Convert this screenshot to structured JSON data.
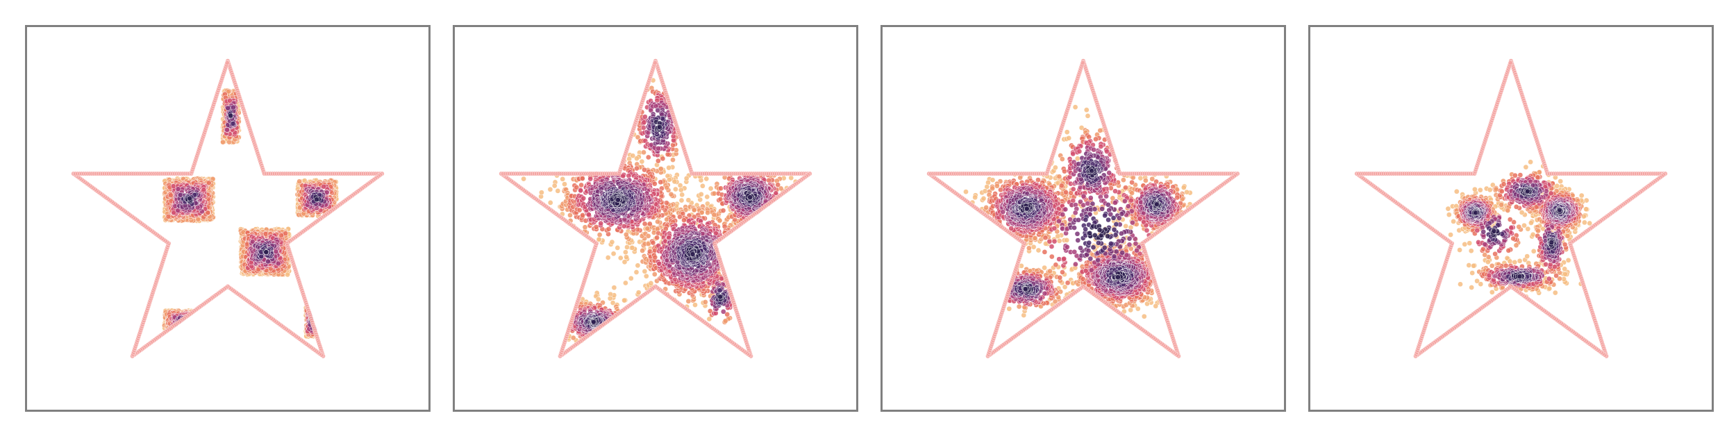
{
  "figure": {
    "columns": 4
  },
  "colors": {
    "outline": "#f4a3a0",
    "frame": "#808080",
    "background": "#ffffff",
    "palette": [
      "#2d1e4f",
      "#4a2a6a",
      "#7a3577",
      "#a8407a",
      "#d24f6e",
      "#e8715e",
      "#f0996c",
      "#f6bd83"
    ]
  },
  "chart_data": [
    {
      "type": "scatter",
      "panel": 1,
      "xlim": [
        -1.25,
        1.25
      ],
      "ylim": [
        -1.15,
        1.22
      ],
      "grid": false,
      "legend": "none",
      "outline": {
        "shape": "star",
        "vertices": [
          [
            0,
            1.0
          ],
          [
            0.225,
            0.309
          ],
          [
            0.951,
            0.309
          ],
          [
            0.364,
            -0.118
          ],
          [
            0.588,
            -0.809
          ],
          [
            0,
            -0.382
          ],
          [
            -0.588,
            -0.809
          ],
          [
            -0.364,
            -0.118
          ],
          [
            -0.951,
            0.309
          ],
          [
            -0.225,
            0.309
          ]
        ]
      },
      "clusters": [
        {
          "name": "",
          "center": [
            -0.24,
            0.15
          ],
          "spread": [
            0.15,
            0.13
          ],
          "count": 900,
          "shape": "square"
        },
        {
          "name": "",
          "center": [
            0.23,
            -0.17
          ],
          "spread": [
            0.15,
            0.14
          ],
          "count": 900,
          "shape": "square"
        },
        {
          "name": "",
          "center": [
            0.55,
            0.16
          ],
          "spread": [
            0.12,
            0.11
          ],
          "count": 420,
          "shape": "square"
        },
        {
          "name": "",
          "center": [
            -0.25,
            -0.6
          ],
          "spread": [
            0.14,
            0.07
          ],
          "count": 260,
          "shape": "square"
        },
        {
          "name": "",
          "center": [
            0.02,
            0.66
          ],
          "spread": [
            0.05,
            0.16
          ],
          "count": 220,
          "shape": "square"
        },
        {
          "name": "",
          "center": [
            0.52,
            -0.6
          ],
          "spread": [
            0.04,
            0.09
          ],
          "count": 90,
          "shape": "square"
        }
      ]
    },
    {
      "type": "scatter",
      "panel": 2,
      "xlim": [
        -1.25,
        1.25
      ],
      "ylim": [
        -1.15,
        1.22
      ],
      "grid": false,
      "legend": "none",
      "outline": {
        "shape": "star",
        "vertices": [
          [
            0,
            1.0
          ],
          [
            0.225,
            0.309
          ],
          [
            0.951,
            0.309
          ],
          [
            0.364,
            -0.118
          ],
          [
            0.588,
            -0.809
          ],
          [
            0,
            -0.382
          ],
          [
            -0.588,
            -0.809
          ],
          [
            -0.364,
            -0.118
          ],
          [
            -0.951,
            0.309
          ],
          [
            -0.225,
            0.309
          ]
        ]
      },
      "clusters": [
        {
          "name": "",
          "center": [
            -0.23,
            0.15
          ],
          "spread": [
            0.17,
            0.12
          ],
          "count": 900,
          "shape": "blob"
        },
        {
          "name": "",
          "center": [
            0.23,
            -0.18
          ],
          "spread": [
            0.15,
            0.14
          ],
          "count": 900,
          "shape": "blob"
        },
        {
          "name": "",
          "center": [
            0.58,
            0.17
          ],
          "spread": [
            0.11,
            0.09
          ],
          "count": 420,
          "shape": "blob"
        },
        {
          "name": "",
          "center": [
            -0.38,
            -0.6
          ],
          "spread": [
            0.1,
            0.06
          ],
          "count": 260,
          "shape": "blob"
        },
        {
          "name": "",
          "center": [
            0.02,
            0.6
          ],
          "spread": [
            0.07,
            0.13
          ],
          "count": 220,
          "shape": "blob"
        },
        {
          "name": "",
          "center": [
            0.4,
            -0.45
          ],
          "spread": [
            0.05,
            0.08
          ],
          "count": 90,
          "shape": "blob"
        }
      ]
    },
    {
      "type": "scatter",
      "panel": 3,
      "xlim": [
        -1.25,
        1.25
      ],
      "ylim": [
        -1.15,
        1.22
      ],
      "grid": false,
      "legend": "none",
      "outline": {
        "shape": "star",
        "vertices": [
          [
            0,
            1.0
          ],
          [
            0.225,
            0.309
          ],
          [
            0.951,
            0.309
          ],
          [
            0.364,
            -0.118
          ],
          [
            0.588,
            -0.809
          ],
          [
            0,
            -0.382
          ],
          [
            -0.588,
            -0.809
          ],
          [
            -0.364,
            -0.118
          ],
          [
            -0.951,
            0.309
          ],
          [
            -0.225,
            0.309
          ]
        ]
      },
      "clusters": [
        {
          "name": "",
          "center": [
            -0.35,
            0.1
          ],
          "spread": [
            0.13,
            0.1
          ],
          "count": 700,
          "shape": "blob"
        },
        {
          "name": "",
          "center": [
            0.22,
            -0.32
          ],
          "spread": [
            0.13,
            0.09
          ],
          "count": 700,
          "shape": "blob"
        },
        {
          "name": "",
          "center": [
            0.45,
            0.12
          ],
          "spread": [
            0.09,
            0.08
          ],
          "count": 420,
          "shape": "blob"
        },
        {
          "name": "",
          "center": [
            -0.35,
            -0.4
          ],
          "spread": [
            0.11,
            0.06
          ],
          "count": 260,
          "shape": "blob"
        },
        {
          "name": "",
          "center": [
            0.05,
            0.33
          ],
          "spread": [
            0.1,
            0.12
          ],
          "count": 300,
          "shape": "blob"
        },
        {
          "name": "",
          "center": [
            0.1,
            -0.05
          ],
          "spread": [
            0.22,
            0.2
          ],
          "count": 350,
          "shape": "blob"
        }
      ]
    },
    {
      "type": "scatter",
      "panel": 4,
      "xlim": [
        -1.25,
        1.25
      ],
      "ylim": [
        -1.15,
        1.22
      ],
      "grid": false,
      "legend": "none",
      "outline": {
        "shape": "star",
        "vertices": [
          [
            0,
            1.0
          ],
          [
            0.225,
            0.309
          ],
          [
            0.951,
            0.309
          ],
          [
            0.364,
            -0.118
          ],
          [
            0.588,
            -0.809
          ],
          [
            0,
            -0.382
          ],
          [
            -0.588,
            -0.809
          ],
          [
            -0.364,
            -0.118
          ],
          [
            -0.951,
            0.309
          ],
          [
            -0.225,
            0.309
          ]
        ]
      },
      "clusters": [
        {
          "name": "",
          "center": [
            -0.22,
            0.07
          ],
          "spread": [
            0.06,
            0.05
          ],
          "count": 350,
          "shape": "blob"
        },
        {
          "name": "",
          "center": [
            0.3,
            0.08
          ],
          "spread": [
            0.07,
            0.06
          ],
          "count": 450,
          "shape": "blob"
        },
        {
          "name": "",
          "center": [
            0.1,
            0.2
          ],
          "spread": [
            0.1,
            0.06
          ],
          "count": 250,
          "shape": "blob"
        },
        {
          "name": "",
          "center": [
            0.05,
            -0.32
          ],
          "spread": [
            0.13,
            0.04
          ],
          "count": 300,
          "shape": "blob"
        },
        {
          "name": "",
          "center": [
            0.25,
            -0.12
          ],
          "spread": [
            0.05,
            0.1
          ],
          "count": 200,
          "shape": "blob"
        },
        {
          "name": "",
          "center": [
            -0.1,
            -0.05
          ],
          "spread": [
            0.08,
            0.08
          ],
          "count": 120,
          "shape": "blob"
        }
      ]
    }
  ]
}
